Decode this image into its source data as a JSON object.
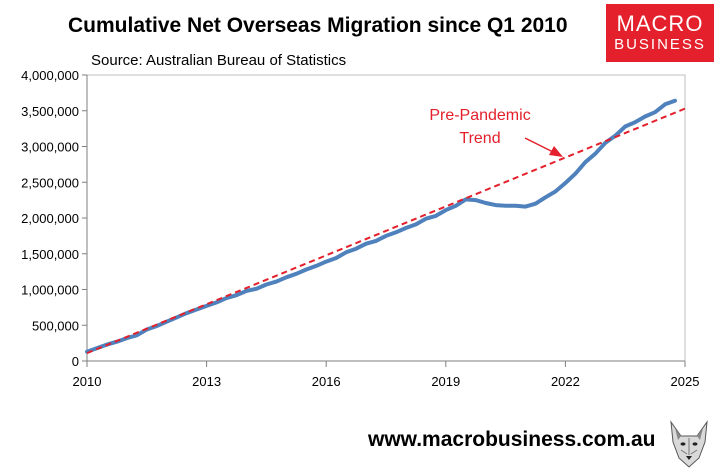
{
  "chart_data": {
    "type": "line",
    "title": "Cumulative Net Overseas Migration since Q1 2010",
    "subtitle": "Source: Australian Bureau of Statistics",
    "xlim": [
      2010,
      2025
    ],
    "ylim": [
      0,
      4000000
    ],
    "x_ticks": [
      "2010",
      "2013",
      "2016",
      "2019",
      "2022",
      "2025"
    ],
    "y_ticks": [
      "0",
      "500,000",
      "1,000,000",
      "1,500,000",
      "2,000,000",
      "2,500,000",
      "3,000,000",
      "3,500,000",
      "4,000,000"
    ],
    "grid": false,
    "series": [
      {
        "color": "#4f81bd",
        "x": [
          2010,
          2010.25,
          2010.5,
          2010.75,
          2011,
          2011.25,
          2011.5,
          2011.75,
          2012,
          2012.25,
          2012.5,
          2012.75,
          2013,
          2013.25,
          2013.5,
          2013.75,
          2014,
          2014.25,
          2014.5,
          2014.75,
          2015,
          2015.25,
          2015.5,
          2015.75,
          2016,
          2016.25,
          2016.5,
          2016.75,
          2017,
          2017.25,
          2017.5,
          2017.75,
          2018,
          2018.25,
          2018.5,
          2018.75,
          2019,
          2019.25,
          2019.5,
          2019.75,
          2020,
          2020.25,
          2020.5,
          2020.75,
          2021,
          2021.25,
          2021.5,
          2021.75,
          2022,
          2022.25,
          2022.5,
          2022.75,
          2023,
          2023.25,
          2023.5,
          2023.75,
          2024,
          2024.25,
          2024.5,
          2024.75
        ],
        "values": [
          130000,
          180000,
          230000,
          270000,
          320000,
          360000,
          440000,
          490000,
          550000,
          610000,
          670000,
          720000,
          770000,
          820000,
          880000,
          920000,
          980000,
          1010000,
          1070000,
          1110000,
          1170000,
          1220000,
          1280000,
          1330000,
          1390000,
          1440000,
          1520000,
          1570000,
          1640000,
          1680000,
          1750000,
          1800000,
          1860000,
          1910000,
          1990000,
          2030000,
          2110000,
          2170000,
          2260000,
          2250000,
          2210000,
          2180000,
          2170000,
          2170000,
          2160000,
          2200000,
          2290000,
          2370000,
          2490000,
          2620000,
          2780000,
          2900000,
          3050000,
          3150000,
          3280000,
          3340000,
          3420000,
          3480000,
          3590000,
          3640000
        ]
      },
      {
        "color": "#e3202b",
        "dashed": true,
        "x": [
          2010,
          2025
        ],
        "values": [
          110000,
          3530000
        ]
      }
    ],
    "annotations": [
      {
        "text_lines": [
          "Pre-Pandemic",
          "Trend"
        ],
        "color": "#e3202b"
      }
    ]
  },
  "brand": {
    "line1": "MACRO",
    "line2": "BUSINESS",
    "color": "#e3202b"
  },
  "footer": {
    "website": "www.macrobusiness.com.au",
    "mascot_icon": "wolf-mascot-icon"
  }
}
